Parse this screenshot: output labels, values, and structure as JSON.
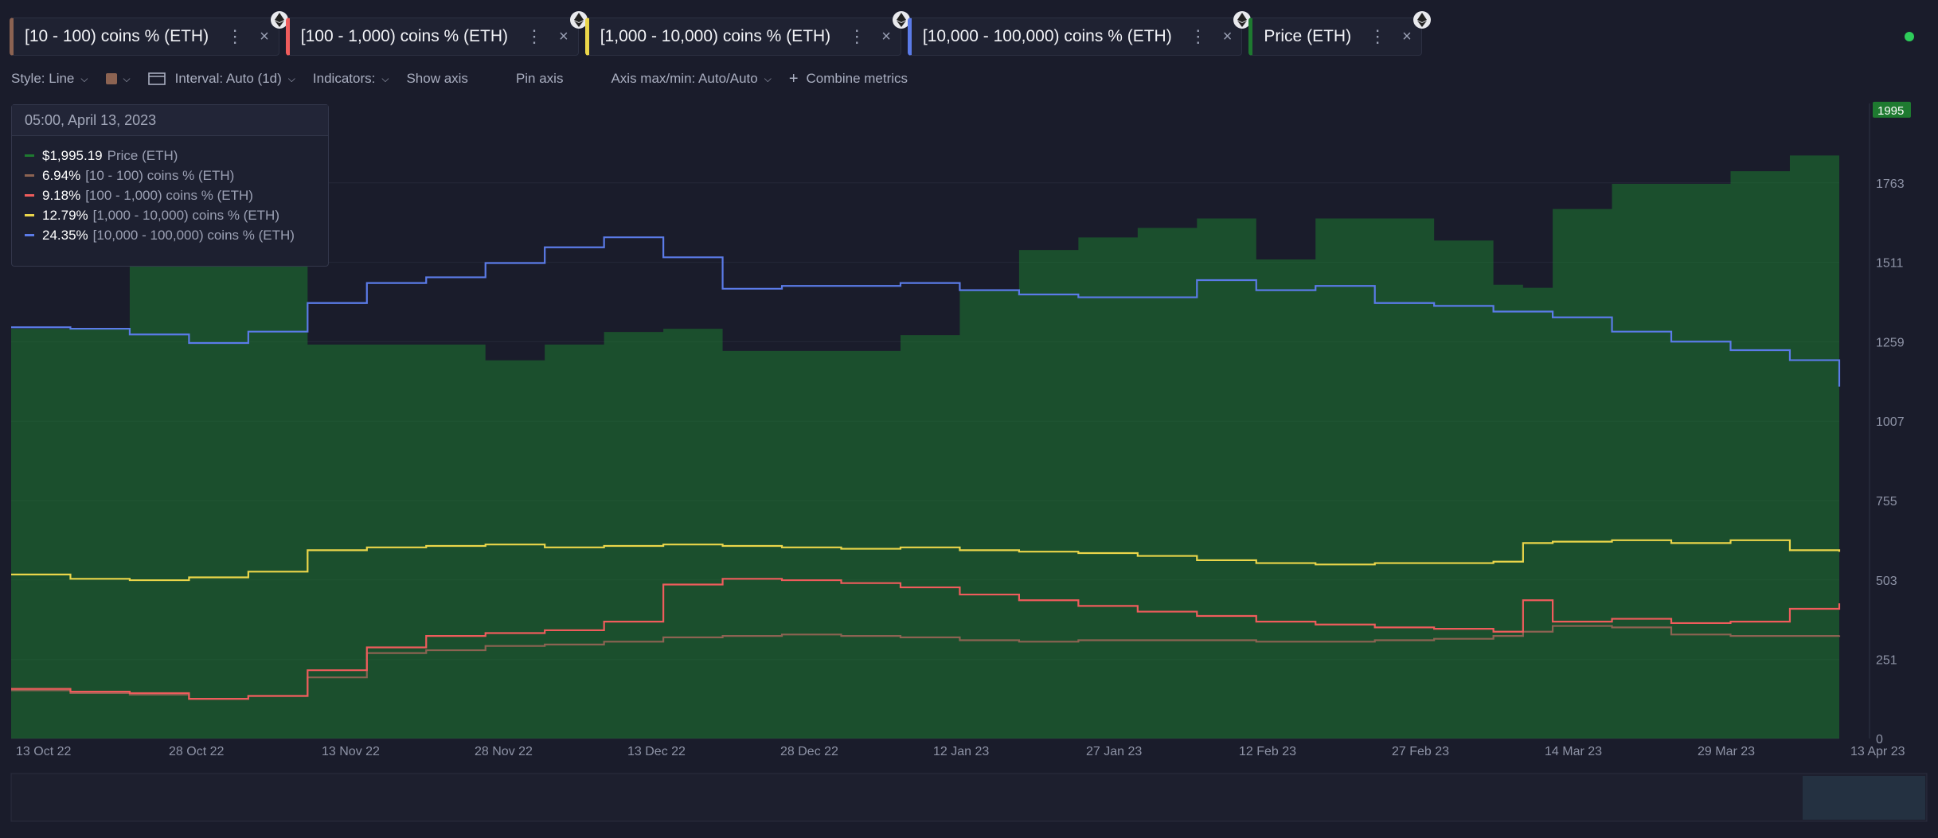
{
  "tabs": [
    {
      "label": "[10 - 100) coins % (ETH)",
      "color": "#8c6352"
    },
    {
      "label": "[100 - 1,000) coins % (ETH)",
      "color": "#ef5c5c"
    },
    {
      "label": "[1,000 - 10,000) coins % (ETH)",
      "color": "#ebd64a"
    },
    {
      "label": "[10,000 - 100,000) coins % (ETH)",
      "color": "#5b7be8"
    },
    {
      "label": "Price (ETH)",
      "color": "#1e7a30"
    }
  ],
  "tab_more_glyph": "⋮",
  "tab_close_glyph": "×",
  "toolbar": {
    "style": "Style: Line",
    "interval": "Interval: Auto (1d)",
    "indicators": "Indicators:",
    "show_axis": "Show axis",
    "pin_axis": "Pin axis",
    "axis_maxmin": "Axis max/min: Auto/Auto",
    "combine": "Combine metrics"
  },
  "tooltip": {
    "date": "05:00, April 13, 2023",
    "rows": [
      {
        "value": "$1,995.19",
        "name": "Price (ETH)",
        "color": "#1e7a30"
      },
      {
        "value": "6.94%",
        "name": "[10 - 100) coins % (ETH)",
        "color": "#8c6352"
      },
      {
        "value": "9.18%",
        "name": "[100 - 1,000) coins % (ETH)",
        "color": "#ef5c5c"
      },
      {
        "value": "12.79%",
        "name": "[1,000 - 10,000) coins % (ETH)",
        "color": "#ebd64a"
      },
      {
        "value": "24.35%",
        "name": "[10,000 - 100,000) coins % (ETH)",
        "color": "#5b7be8"
      }
    ]
  },
  "chart_data": {
    "type": "line",
    "x_tick_labels": [
      "13 Oct 22",
      "28 Oct 22",
      "13 Nov 22",
      "28 Nov 22",
      "13 Dec 22",
      "28 Dec 22",
      "12 Jan 23",
      "27 Jan 23",
      "12 Feb 23",
      "27 Feb 23",
      "14 Mar 23",
      "29 Mar 23",
      "13 Apr 23"
    ],
    "y_ticks": [
      0,
      251,
      503,
      755,
      1007,
      1259,
      1511,
      1763
    ],
    "ylim": [
      0,
      2015
    ],
    "price_marker": "1995",
    "x_dates": [
      "2022-10-10",
      "2022-10-16",
      "2022-10-22",
      "2022-10-28",
      "2022-11-03",
      "2022-11-09",
      "2022-11-15",
      "2022-11-21",
      "2022-11-27",
      "2022-12-03",
      "2022-12-09",
      "2022-12-15",
      "2022-12-21",
      "2022-12-27",
      "2023-01-02",
      "2023-01-08",
      "2023-01-14",
      "2023-01-20",
      "2023-01-26",
      "2023-02-01",
      "2023-02-07",
      "2023-02-13",
      "2023-02-19",
      "2023-02-25",
      "2023-03-03",
      "2023-03-09",
      "2023-03-12",
      "2023-03-15",
      "2023-03-21",
      "2023-03-27",
      "2023-04-02",
      "2023-04-08",
      "2023-04-13"
    ],
    "series": [
      {
        "name": "Price (ETH)",
        "kind": "area",
        "color": "#1e7a30",
        "values": [
          1300,
          1300,
          1580,
          1580,
          1580,
          1250,
          1250,
          1250,
          1200,
          1250,
          1290,
          1300,
          1230,
          1230,
          1230,
          1280,
          1420,
          1550,
          1590,
          1620,
          1650,
          1520,
          1650,
          1650,
          1580,
          1440,
          1430,
          1680,
          1760,
          1760,
          1800,
          1850,
          1995
        ]
      },
      {
        "name": "[10 - 100) coins % (ETH)",
        "kind": "line",
        "color": "#8c6352",
        "values": [
          3.1,
          2.9,
          2.8,
          2.5,
          2.7,
          4.0,
          5.7,
          5.9,
          6.2,
          6.3,
          6.5,
          6.8,
          6.9,
          7.0,
          6.9,
          6.8,
          6.6,
          6.5,
          6.6,
          6.6,
          6.6,
          6.5,
          6.5,
          6.6,
          6.7,
          6.9,
          7.2,
          7.6,
          7.5,
          7.0,
          6.9,
          6.9,
          6.94
        ]
      },
      {
        "name": "[100 - 1,000) coins % (ETH)",
        "kind": "line",
        "color": "#ef5c5c",
        "values": [
          3.2,
          3.0,
          2.9,
          2.5,
          2.7,
          4.5,
          6.1,
          6.9,
          7.1,
          7.3,
          7.9,
          10.5,
          10.9,
          10.8,
          10.6,
          10.3,
          9.8,
          9.4,
          9.0,
          8.6,
          8.3,
          7.9,
          7.7,
          7.5,
          7.4,
          7.2,
          9.4,
          7.9,
          8.1,
          7.8,
          7.9,
          8.8,
          9.18
        ]
      },
      {
        "name": "[1,000 - 10,000) coins % (ETH)",
        "kind": "line",
        "color": "#ebd64a",
        "values": [
          11.2,
          10.9,
          10.8,
          11.0,
          11.4,
          12.9,
          13.1,
          13.2,
          13.3,
          13.1,
          13.2,
          13.3,
          13.2,
          13.1,
          13.0,
          13.1,
          12.9,
          12.8,
          12.7,
          12.5,
          12.2,
          12.0,
          11.9,
          12.0,
          12.0,
          12.1,
          13.4,
          13.5,
          13.6,
          13.4,
          13.6,
          12.9,
          12.79
        ]
      },
      {
        "name": "[10,000 - 100,000) coins % (ETH)",
        "kind": "line",
        "color": "#5b7be8",
        "values": [
          28.5,
          28.4,
          28.0,
          27.4,
          28.2,
          30.2,
          31.6,
          32.0,
          33.0,
          34.1,
          34.8,
          33.4,
          31.2,
          31.4,
          31.4,
          31.6,
          31.1,
          30.8,
          30.6,
          30.6,
          31.8,
          31.1,
          31.4,
          30.2,
          30.0,
          29.6,
          29.6,
          29.2,
          28.2,
          27.5,
          26.9,
          26.2,
          24.35
        ]
      }
    ]
  }
}
